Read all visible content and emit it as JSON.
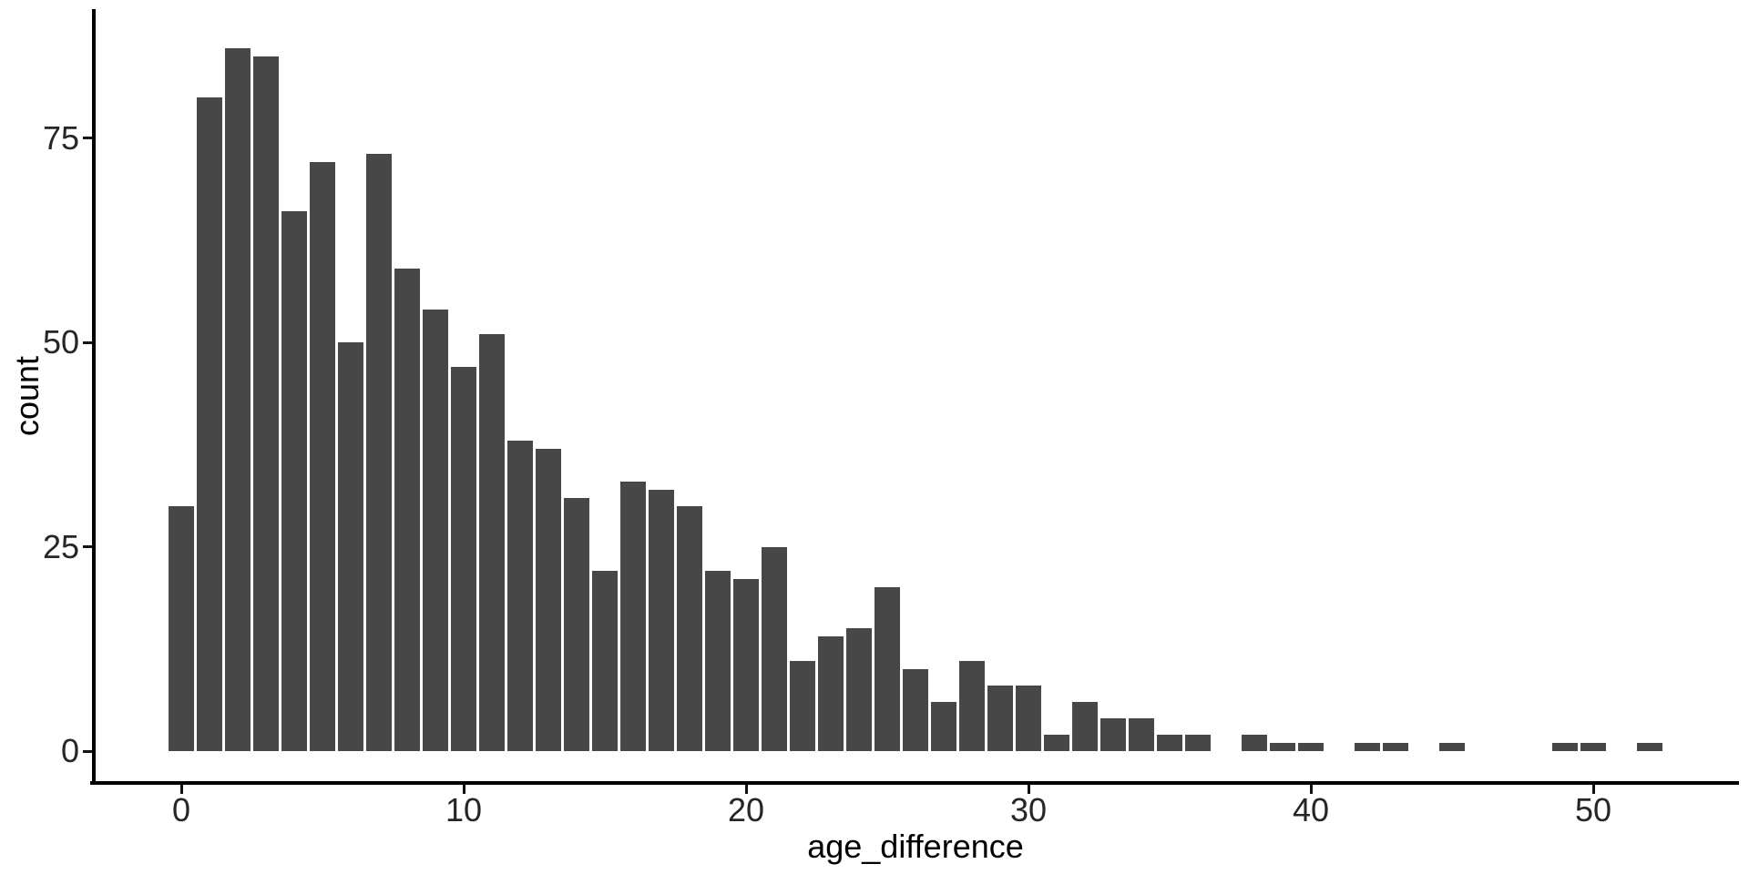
{
  "chart_data": {
    "type": "bar",
    "subtype": "histogram",
    "title": "",
    "xlabel": "age_difference",
    "ylabel": "count",
    "binwidth": 1,
    "categories": [
      0,
      1,
      2,
      3,
      4,
      5,
      6,
      7,
      8,
      9,
      10,
      11,
      12,
      13,
      14,
      15,
      16,
      17,
      18,
      19,
      20,
      21,
      22,
      23,
      24,
      25,
      26,
      27,
      28,
      29,
      30,
      31,
      32,
      33,
      34,
      35,
      36,
      37,
      38,
      39,
      40,
      41,
      42,
      43,
      44,
      45,
      46,
      47,
      48,
      49,
      50,
      51,
      52
    ],
    "values": [
      30,
      80,
      86,
      85,
      66,
      72,
      50,
      73,
      59,
      54,
      47,
      51,
      38,
      37,
      31,
      22,
      33,
      32,
      30,
      22,
      21,
      25,
      11,
      14,
      15,
      20,
      10,
      6,
      11,
      8,
      8,
      2,
      6,
      4,
      4,
      2,
      2,
      0,
      2,
      1,
      1,
      0,
      1,
      1,
      0,
      1,
      0,
      0,
      0,
      1,
      1,
      0,
      1
    ],
    "x_ticks": [
      0,
      10,
      20,
      30,
      40,
      50
    ],
    "y_ticks": [
      0,
      25,
      50,
      75
    ],
    "xlim": [
      -3.2,
      55.2
    ],
    "ylim": [
      0,
      90
    ],
    "grid": false,
    "legend": "none",
    "bar_color": "#474747",
    "axis_color": "#000000",
    "text_color": "#262626",
    "background_color": "#ffffff"
  }
}
